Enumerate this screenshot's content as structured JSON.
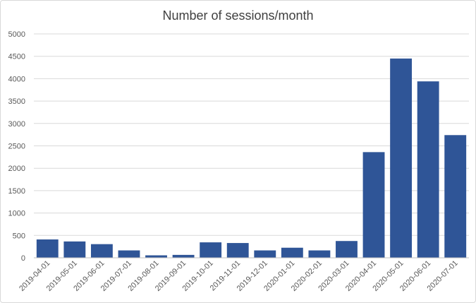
{
  "chart_data": {
    "type": "bar",
    "title": "Number of sessions/month",
    "xlabel": "",
    "ylabel": "",
    "categories": [
      "2019-04-01",
      "2019-05-01",
      "2019-06-01",
      "2019-07-01",
      "2019-08-01",
      "2019-09-01",
      "2019-10-01",
      "2019-11-01",
      "2019-12-01",
      "2020-01-01",
      "2020-02-01",
      "2020-03-01",
      "2020-04-01",
      "2020-05-01",
      "2020-06-01",
      "2020-07-01"
    ],
    "values": [
      410,
      365,
      305,
      165,
      55,
      65,
      345,
      330,
      165,
      225,
      165,
      375,
      2360,
      4450,
      3940,
      2740
    ],
    "ylim": [
      0,
      5000
    ],
    "yticks": [
      0,
      500,
      1000,
      1500,
      2000,
      2500,
      3000,
      3500,
      4000,
      4500,
      5000
    ],
    "grid": true,
    "legend": "none",
    "bar_color": "#2f5597"
  }
}
